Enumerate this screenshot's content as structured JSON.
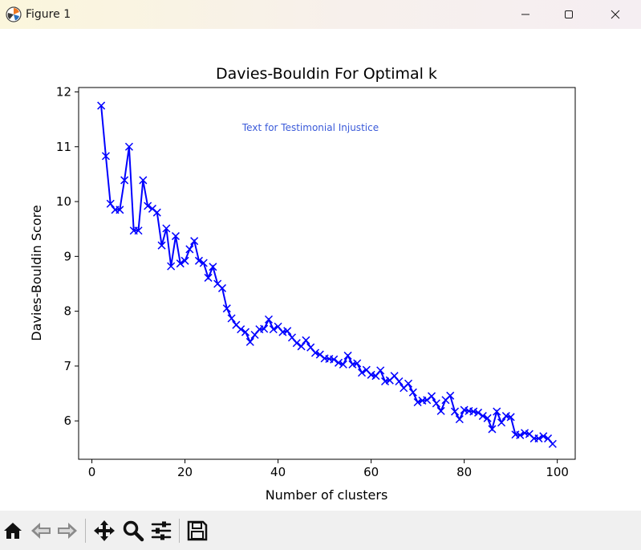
{
  "window": {
    "title": "Figure 1",
    "icons": [
      "matplotlib-logo-icon",
      "minimize-icon",
      "maximize-icon",
      "close-icon"
    ]
  },
  "toolbar": {
    "buttons": [
      "home-icon",
      "back-arrow-icon",
      "forward-arrow-icon",
      "pan-move-icon",
      "zoom-magnifier-icon",
      "configure-subplots-icon",
      "save-floppy-icon"
    ]
  },
  "colors": {
    "series": "#0000ff",
    "annotation": "#3b5bd9",
    "toolbar_bg": "#f0f0f0"
  },
  "chart_data": {
    "type": "line",
    "title": "Davies-Bouldin For Optimal k",
    "xlabel": "Number of clusters",
    "ylabel": "Davies-Bouldin Score",
    "annotation": "Text for Testimonial Injustice",
    "xlim": [
      -2.85,
      103.85
    ],
    "ylim": [
      5.3,
      12.08
    ],
    "xticks": [
      0,
      20,
      40,
      60,
      80,
      100
    ],
    "yticks": [
      6,
      7,
      8,
      9,
      10,
      11,
      12
    ],
    "grid": false,
    "legend": "none",
    "marker": "x",
    "series": [
      {
        "x": [
          2,
          3,
          4,
          5,
          6,
          7,
          8,
          9,
          10,
          11,
          12,
          13,
          14,
          15,
          16,
          17,
          18,
          19,
          20,
          21,
          22,
          23,
          24,
          25,
          26,
          27,
          28,
          29,
          30,
          31,
          32,
          33,
          34,
          35,
          36,
          37,
          38,
          39,
          40,
          41,
          42,
          43,
          44,
          45,
          46,
          47,
          48,
          49,
          50,
          51,
          52,
          53,
          54,
          55,
          56,
          57,
          58,
          59,
          60,
          61,
          62,
          63,
          64,
          65,
          66,
          67,
          68,
          69,
          70,
          71,
          72,
          73,
          74,
          75,
          76,
          77,
          78,
          79,
          80,
          81,
          82,
          83,
          84,
          85,
          86,
          87,
          88,
          89,
          90,
          91,
          92,
          93,
          94,
          95,
          96,
          97,
          98,
          99
        ],
        "y": [
          11.75,
          10.83,
          9.96,
          9.85,
          9.85,
          10.39,
          11.0,
          9.47,
          9.47,
          10.39,
          9.92,
          9.87,
          9.8,
          9.2,
          9.51,
          8.82,
          9.37,
          8.87,
          8.92,
          9.13,
          9.28,
          8.92,
          8.88,
          8.61,
          8.81,
          8.5,
          8.42,
          8.05,
          7.87,
          7.75,
          7.67,
          7.62,
          7.44,
          7.57,
          7.67,
          7.68,
          7.85,
          7.67,
          7.72,
          7.62,
          7.64,
          7.52,
          7.42,
          7.36,
          7.47,
          7.34,
          7.24,
          7.21,
          7.14,
          7.13,
          7.12,
          7.06,
          7.03,
          7.19,
          7.03,
          7.05,
          6.88,
          6.93,
          6.84,
          6.82,
          6.92,
          6.72,
          6.74,
          6.82,
          6.72,
          6.6,
          6.68,
          6.52,
          6.34,
          6.37,
          6.38,
          6.45,
          6.32,
          6.18,
          6.38,
          6.46,
          6.17,
          6.03,
          6.2,
          6.18,
          6.17,
          6.15,
          6.09,
          6.05,
          5.85,
          6.17,
          5.97,
          6.09,
          6.07,
          5.75,
          5.74,
          5.78,
          5.76,
          5.68,
          5.68,
          5.72,
          5.68,
          5.58
        ]
      }
    ]
  }
}
